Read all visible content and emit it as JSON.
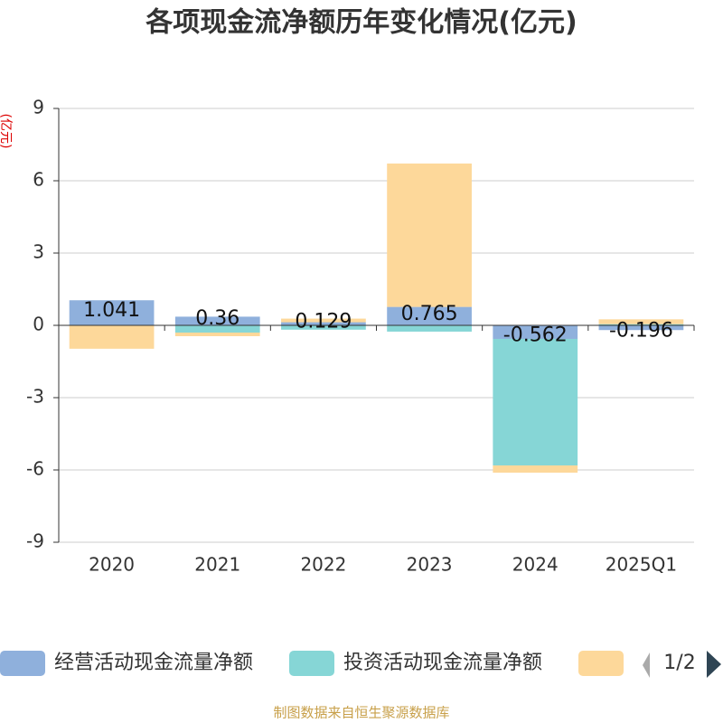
{
  "chart_data": {
    "type": "stacked_bar",
    "title": "各项现金流净额历年变化情况(亿元)",
    "y_label": "(亿元)",
    "categories": [
      "2020",
      "2021",
      "2022",
      "2023",
      "2024",
      "2025Q1"
    ],
    "series": [
      {
        "name": "经营活动现金流量净额",
        "color": "#8fb0dc",
        "values": [
          1.041,
          0.36,
          0.129,
          0.765,
          -0.562,
          -0.196
        ]
      },
      {
        "name": "投资活动现金流量净额",
        "color": "#86d6d6",
        "values": [
          0,
          -0.3,
          -0.18,
          -0.26,
          -5.25,
          0.05
        ]
      },
      {
        "color": "#fdd89a",
        "values": [
          -0.97,
          -0.15,
          0.15,
          5.95,
          -0.3,
          0.2
        ]
      }
    ],
    "ylim": [
      -9,
      9
    ],
    "yticks": [
      9,
      6,
      3,
      0,
      -3,
      -6,
      -9
    ],
    "grid": true,
    "legend_page": "1/2",
    "source": "制图数据来自恒生聚源数据库"
  }
}
